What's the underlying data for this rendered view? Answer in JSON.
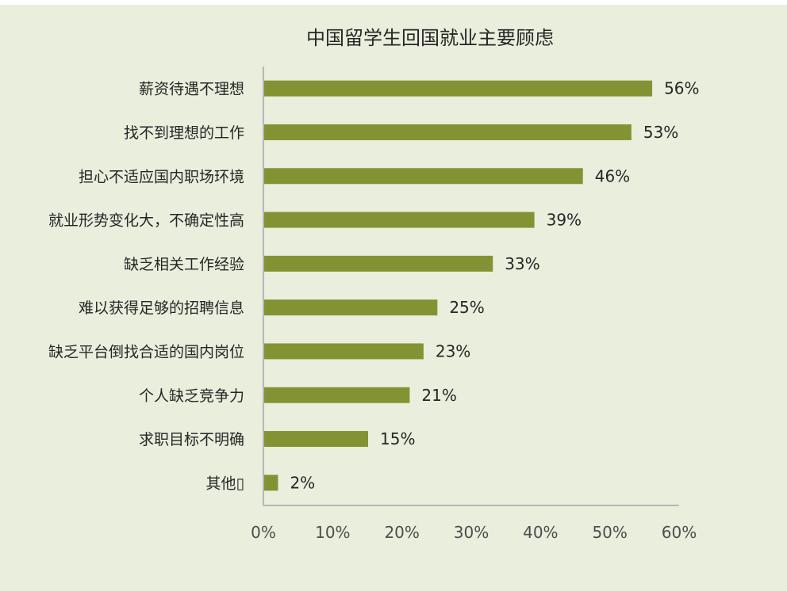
{
  "chart_data": {
    "type": "bar",
    "orientation": "horizontal",
    "title": "中国留学生回国就业主要顾虑",
    "categories": [
      "薪资待遇不理想",
      "找不到理想的工作",
      "担心不适应国内职场环境",
      "就业形势变化大，不确定性高",
      "缺乏相关工作经验",
      "难以获得足够的招聘信息",
      "缺乏平台倒找合适的国内岗位",
      "个人缺乏竞争力",
      "求职目标不明确",
      "其他\u0000"
    ],
    "values": [
      56,
      53,
      46,
      39,
      33,
      25,
      23,
      21,
      15,
      2
    ],
    "value_labels": [
      "56%",
      "53%",
      "46%",
      "39%",
      "33%",
      "25%",
      "23%",
      "21%",
      "15%",
      "2%"
    ],
    "xlim": [
      0,
      60
    ],
    "xticks": [
      0,
      10,
      20,
      30,
      40,
      50,
      60
    ],
    "xtick_labels": [
      "0%",
      "10%",
      "20%",
      "30%",
      "40%",
      "50%",
      "60%"
    ],
    "xlabel": "",
    "ylabel": "",
    "grid": false,
    "legend": "none",
    "bar_color": "#839334",
    "background_color": "#e9eedd",
    "axis_color": "#a6a6a6"
  }
}
